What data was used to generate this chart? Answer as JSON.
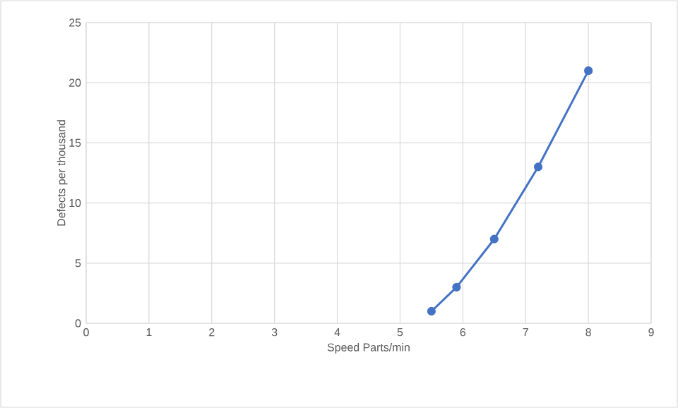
{
  "chart_data": {
    "type": "line",
    "xlabel": "Speed Parts/min",
    "ylabel": "Defects per thousand",
    "x": [
      5.5,
      5.9,
      6.5,
      7.2,
      8
    ],
    "series": [
      {
        "color": "#4472c4",
        "values": [
          1,
          3,
          7,
          13,
          21
        ]
      }
    ],
    "xlim": [
      0,
      9
    ],
    "xticks": [
      0,
      1,
      2,
      3,
      4,
      5,
      6,
      7,
      8,
      9
    ],
    "ylim": [
      0,
      25
    ],
    "yticks": [
      0,
      5,
      10,
      15,
      20,
      25
    ],
    "grid": true,
    "marker": "circle",
    "line_style": "solid"
  }
}
